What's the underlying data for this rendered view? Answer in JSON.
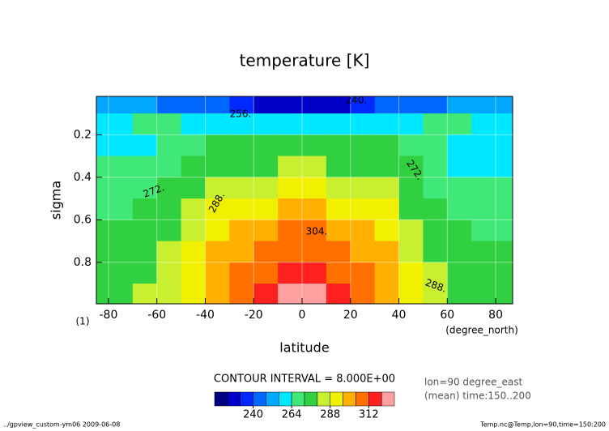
{
  "chart_data": {
    "type": "contour",
    "title": "temperature [K]",
    "xlabel": "latitude",
    "ylabel": "sigma",
    "xunits": "(degree_north)",
    "yunits": "(1)",
    "x": [
      -85,
      -75,
      -65,
      -55,
      -45,
      -35,
      -25,
      -15,
      -5,
      5,
      15,
      25,
      35,
      45,
      55,
      65,
      75,
      85
    ],
    "y": [
      0.05,
      0.15,
      0.25,
      0.35,
      0.45,
      0.55,
      0.65,
      0.75,
      0.85,
      0.95
    ],
    "z": [
      [
        250,
        250,
        248,
        246,
        244,
        240,
        234,
        230,
        226,
        226,
        230,
        234,
        240,
        244,
        246,
        248,
        250,
        250
      ],
      [
        262,
        263,
        264,
        265,
        262,
        259,
        257,
        256,
        256,
        256,
        256,
        257,
        259,
        262,
        265,
        264,
        262,
        260
      ],
      [
        260,
        260,
        262,
        266,
        270,
        272,
        272,
        273,
        274,
        274,
        273,
        272,
        272,
        270,
        264,
        260,
        258,
        256
      ],
      [
        264,
        264,
        266,
        268,
        272,
        276,
        278,
        279,
        280,
        280,
        279,
        278,
        276,
        272,
        266,
        262,
        260,
        260
      ],
      [
        268,
        268,
        270,
        272,
        276,
        282,
        284,
        286,
        288,
        288,
        286,
        284,
        282,
        274,
        268,
        266,
        264,
        264
      ],
      [
        270,
        271,
        273,
        276,
        280,
        288,
        292,
        294,
        296,
        296,
        294,
        292,
        288,
        278,
        272,
        270,
        268,
        268
      ],
      [
        272,
        273,
        275,
        278,
        284,
        292,
        298,
        302,
        304,
        304,
        302,
        298,
        292,
        282,
        274,
        272,
        270,
        270
      ],
      [
        274,
        275,
        277,
        281,
        288,
        296,
        302,
        306,
        308,
        308,
        306,
        302,
        296,
        286,
        278,
        274,
        272,
        272
      ],
      [
        276,
        277,
        279,
        284,
        292,
        300,
        306,
        310,
        312,
        312,
        310,
        306,
        300,
        290,
        282,
        276,
        274,
        274
      ],
      [
        278,
        279,
        281,
        286,
        294,
        302,
        308,
        313,
        318,
        318,
        313,
        308,
        302,
        292,
        284,
        278,
        276,
        276
      ]
    ],
    "xlim": [
      -85,
      87
    ],
    "ylim": [
      0.02,
      0.995
    ],
    "y_reversed": true,
    "xticks": [
      -80,
      -60,
      -40,
      -20,
      0,
      20,
      40,
      60,
      80
    ],
    "yticks": [
      0.2,
      0.4,
      0.6,
      0.8
    ],
    "grid": true,
    "levels": [
      216,
      224,
      232,
      240,
      248,
      256,
      264,
      272,
      280,
      288,
      296,
      304,
      312,
      316,
      320
    ],
    "colors": [
      "#000080",
      "#0000c8",
      "#0028ff",
      "#0068ff",
      "#00a8ff",
      "#00e8ff",
      "#40e878",
      "#30d040",
      "#c8f030",
      "#f0f000",
      "#ffb000",
      "#ff7000",
      "#ff2020",
      "#ffa0a0"
    ],
    "colorbar_ticks": [
      240,
      264,
      288,
      312
    ],
    "contour_labels": [
      "240.",
      "256.",
      "272.",
      "288.",
      "304.",
      "272.",
      "288."
    ],
    "contour_interval": "CONTOUR INTERVAL = 8.000E+00",
    "info": [
      "lon=90 degree_east",
      "(mean) time:150..200"
    ],
    "footer_left": "../gpview_custom-ym06  2009-06-08",
    "footer_right": "Temp.nc@Temp,lon=90,time=150:200"
  }
}
